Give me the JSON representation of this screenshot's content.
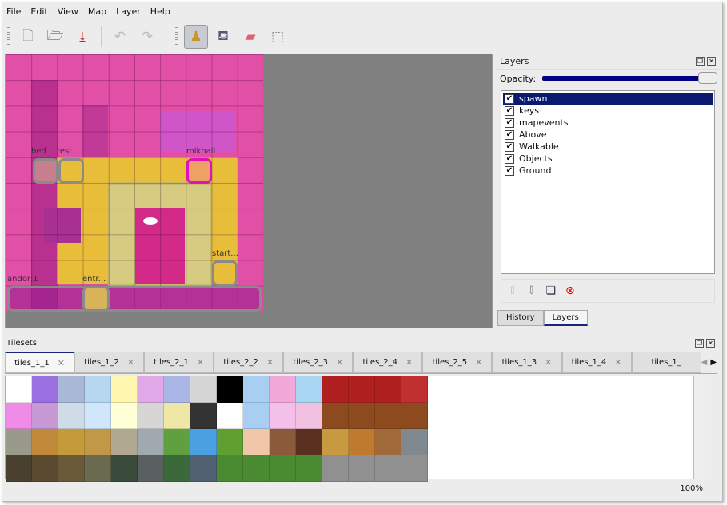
{
  "menu": [
    "File",
    "Edit",
    "View",
    "Map",
    "Layer",
    "Help"
  ],
  "toolbar": [
    {
      "name": "new-icon",
      "glyph": "🗋"
    },
    {
      "name": "open-icon",
      "glyph": "🗁"
    },
    {
      "name": "save-icon",
      "glyph": "⤓"
    },
    {
      "name": "undo-icon",
      "glyph": "↶"
    },
    {
      "name": "redo-icon",
      "glyph": "↷"
    },
    {
      "name": "stamp-brush-icon",
      "glyph": "♟"
    },
    {
      "name": "bucket-fill-icon",
      "glyph": "⛾"
    },
    {
      "name": "eraser-icon",
      "glyph": "▰"
    },
    {
      "name": "rect-select-icon",
      "glyph": "⬚"
    }
  ],
  "map": {
    "objects": [
      "bed",
      "rest",
      "mikhail",
      "start...",
      "andor:1",
      "entr..."
    ]
  },
  "layers_panel": {
    "title": "Layers",
    "opacity_label": "Opacity:",
    "opacity": 100,
    "layers": [
      {
        "name": "spawn",
        "visible": true,
        "selected": true
      },
      {
        "name": "keys",
        "visible": true
      },
      {
        "name": "mapevents",
        "visible": true
      },
      {
        "name": "Above",
        "visible": true
      },
      {
        "name": "Walkable",
        "visible": true
      },
      {
        "name": "Objects",
        "visible": true
      },
      {
        "name": "Ground",
        "visible": true
      }
    ],
    "tabs": [
      "History",
      "Layers"
    ],
    "active_tab": "Layers"
  },
  "tilesets": {
    "title": "Tilesets",
    "tabs": [
      "tiles_1_1",
      "tiles_1_2",
      "tiles_2_1",
      "tiles_2_2",
      "tiles_2_3",
      "tiles_2_4",
      "tiles_2_5",
      "tiles_1_3",
      "tiles_1_4",
      "tiles_1_"
    ],
    "active": "tiles_1_1",
    "tile_colors": [
      "#ffffff",
      "#9a6fe0",
      "#a9b8d6",
      "#b6d7f2",
      "#fff6b0",
      "#e0a8e6",
      "#a9b6e6",
      "#d6d6d6",
      "#000000",
      "#a8cff2",
      "#f2a8d8",
      "#a8d6f2",
      "#b02020",
      "#b02020",
      "#b02020",
      "#c03030",
      "#f08ce8",
      "#c79ad6",
      "#d0dbe8",
      "#cfe6fb",
      "#ffffd8",
      "#d6d6d6",
      "#efe7a6",
      "#333333",
      "#ffffff",
      "#a8cff2",
      "#f2c0e8",
      "#f2c0e0",
      "#8c4a1e",
      "#8c4a1e",
      "#8c4a1e",
      "#8c4a1e",
      "#9a9a8a",
      "#c08a3a",
      "#c49a3a",
      "#c09848",
      "#b0a890",
      "#a0a8b0",
      "#60a040",
      "#4aa0e0",
      "#60a030",
      "#f0c8a8",
      "#8a5a3a",
      "#5a3020",
      "#c89a40",
      "#c07a30",
      "#a06a3a",
      "#808890",
      "#4a4030",
      "#5a4a30",
      "#6a5a3a",
      "#6a6a50",
      "#3a4a3a",
      "#5a6060",
      "#3a6a3a",
      "#506070",
      "#4a8a30",
      "#4a8a30",
      "#4a8a30",
      "#4a8a30",
      "#909090",
      "#909090",
      "#909090",
      "#909090"
    ]
  },
  "status": {
    "zoom": "100%"
  }
}
